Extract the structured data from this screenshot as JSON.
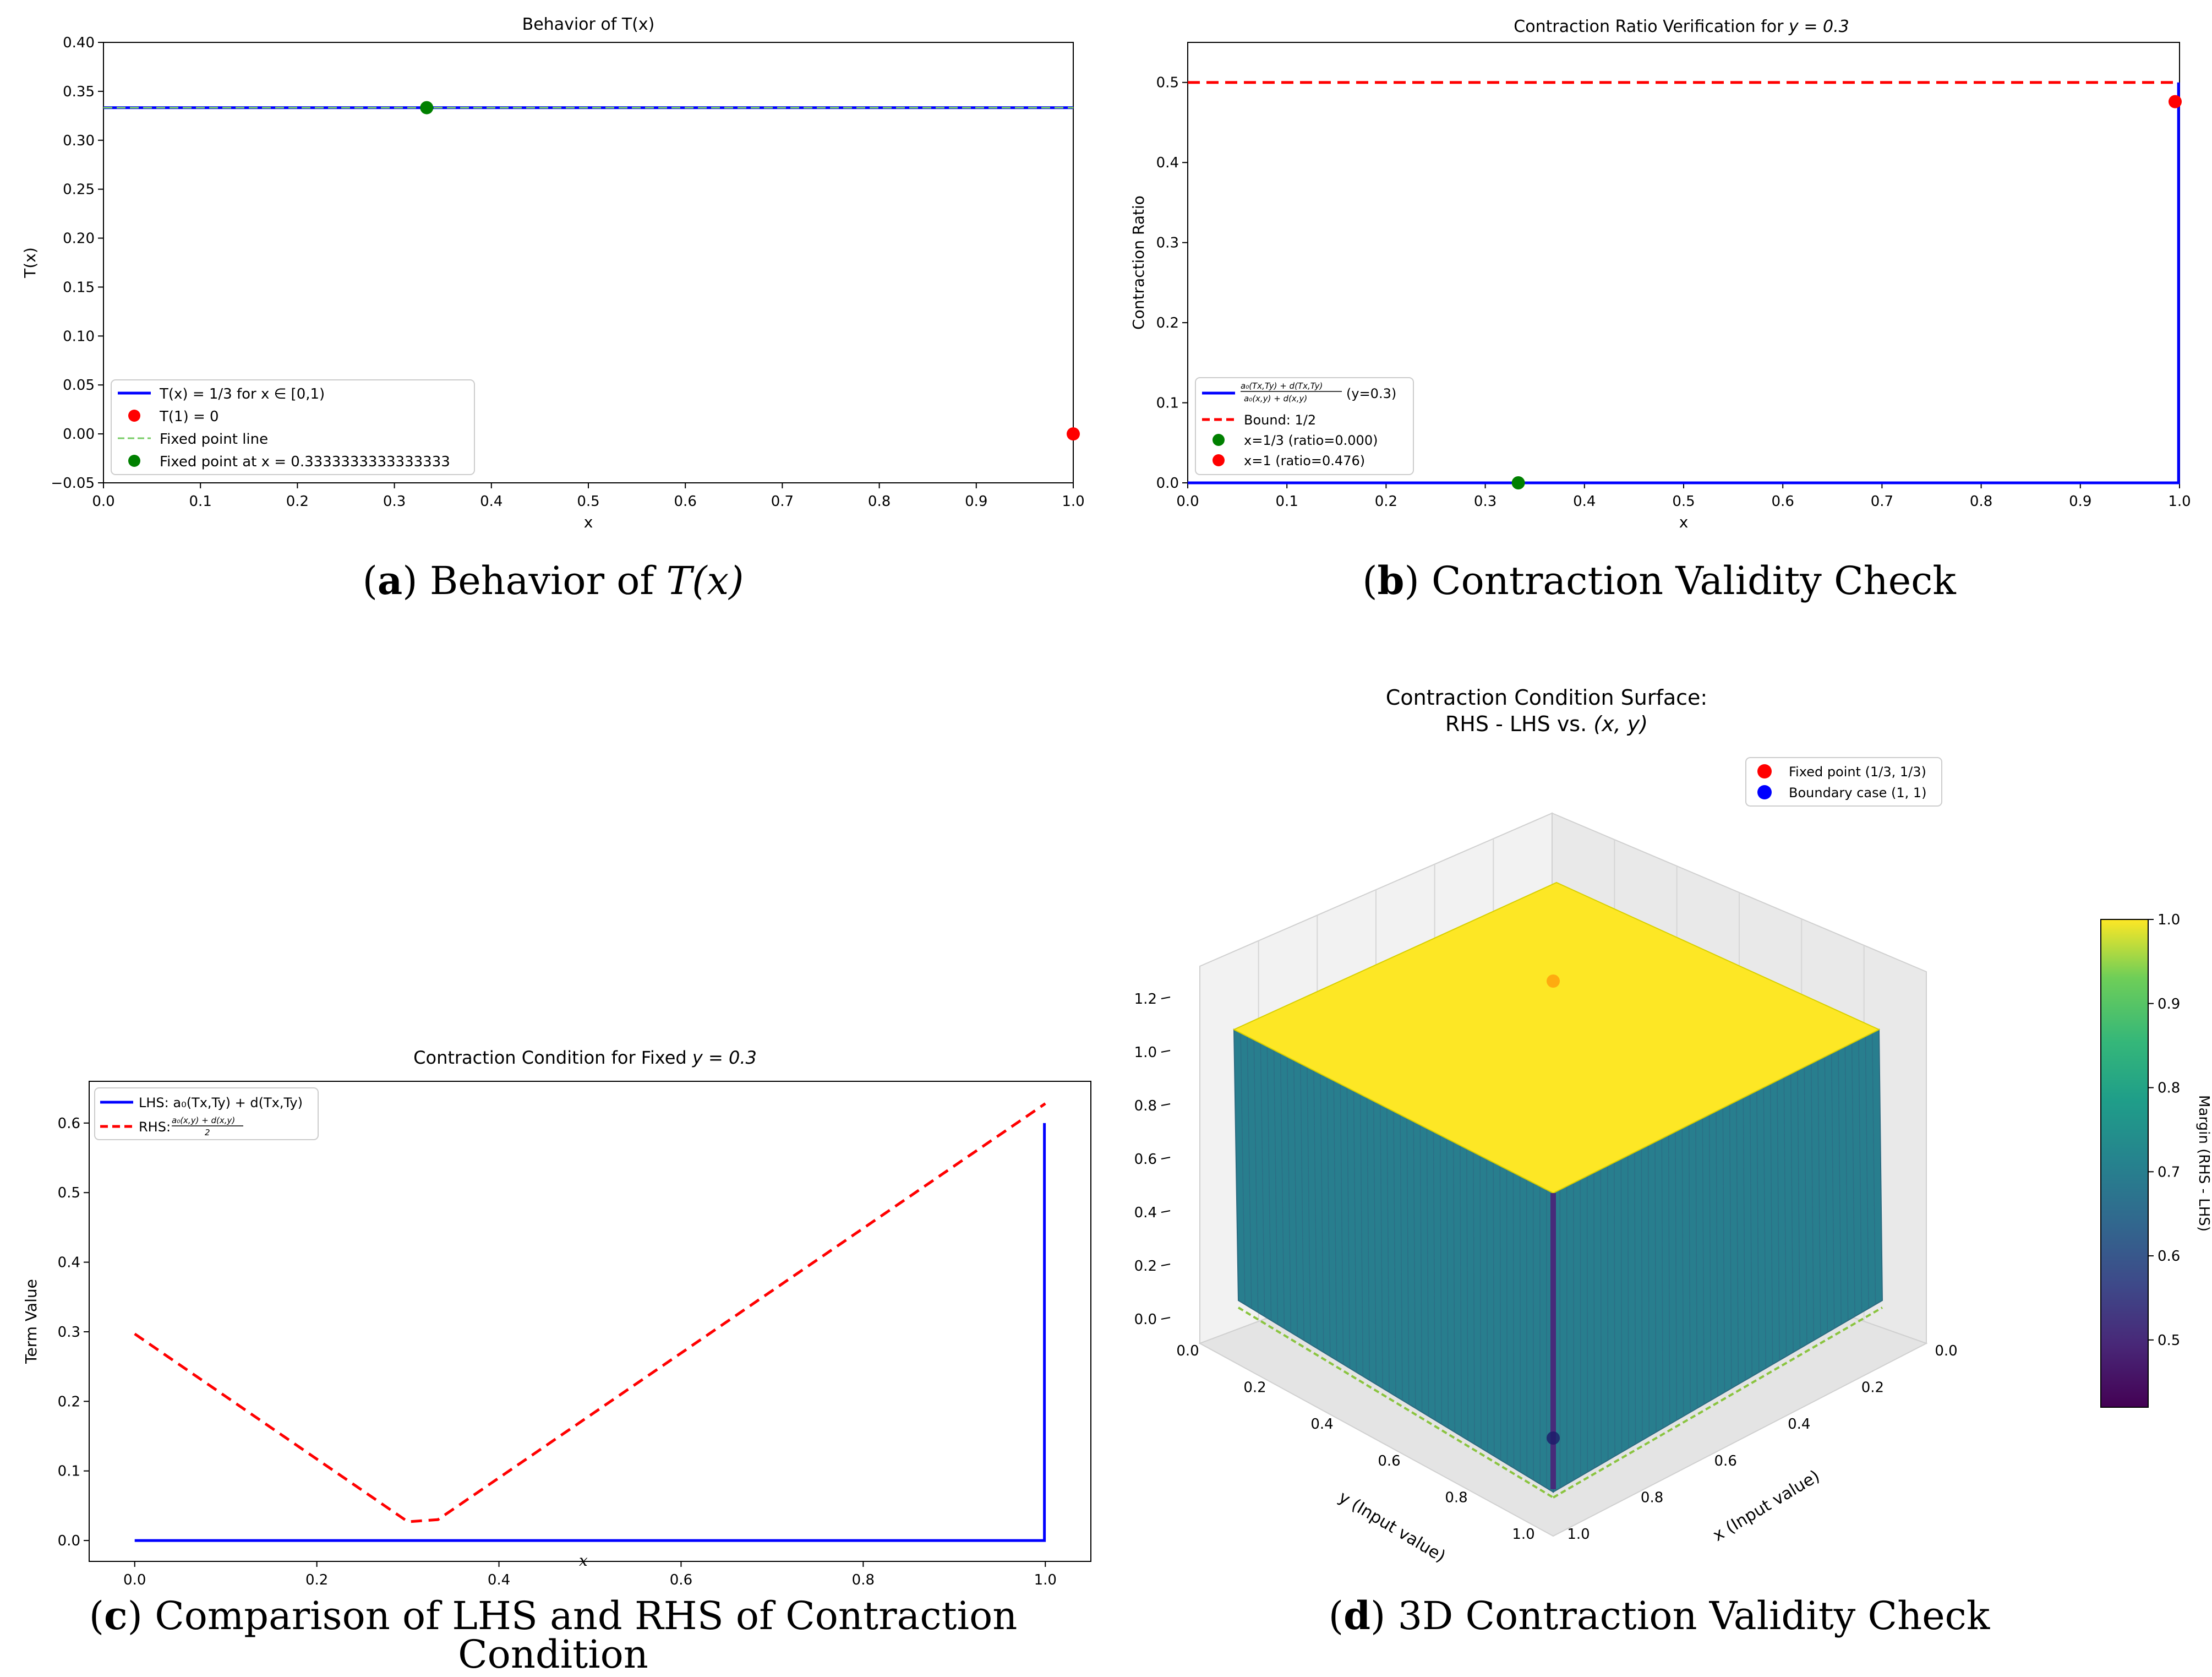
{
  "captions": [
    {
      "letter": "a",
      "text": "Behavior of",
      "math": "T(x)"
    },
    {
      "letter": "b",
      "text": "Contraction Validity Check",
      "math": ""
    },
    {
      "letter": "c",
      "text": "Comparison of LHS and RHS of Contraction Condition",
      "math": ""
    },
    {
      "letter": "d",
      "text": "3D Contraction Validity Check",
      "math": ""
    }
  ],
  "chart_data": [
    {
      "id": "a",
      "type": "line",
      "title": "Behavior of T(x)",
      "xlabel": "x",
      "ylabel": "T(x)",
      "xlim": [
        0,
        1
      ],
      "ylim": [
        -0.05,
        0.4
      ],
      "xticks": [
        "0.0",
        "0.1",
        "0.2",
        "0.3",
        "0.4",
        "0.5",
        "0.6",
        "0.7",
        "0.8",
        "0.9",
        "1.0"
      ],
      "yticks": [
        "−0.05",
        "0.00",
        "0.05",
        "0.10",
        "0.15",
        "0.20",
        "0.25",
        "0.30",
        "0.35",
        "0.40"
      ],
      "series": [
        {
          "name": "T(x) = 1/3 for x ∈ [0,1)",
          "color": "#0000ff",
          "style": "solid",
          "x": [
            0,
            1
          ],
          "y": [
            0.3333,
            0.3333
          ]
        },
        {
          "name": "T(1) = 0",
          "color": "#ff0000",
          "style": "marker",
          "x": [
            1.0
          ],
          "y": [
            0.0
          ]
        },
        {
          "name": "Fixed point line",
          "color": "#77cc66",
          "style": "dashed",
          "x": [
            0,
            1
          ],
          "y": [
            0.3333,
            0.3333
          ]
        },
        {
          "name": "Fixed point at x = 0.3333333333333333",
          "color": "#008000",
          "style": "marker",
          "x": [
            0.3333
          ],
          "y": [
            0.3333
          ]
        }
      ],
      "legend": "lower-left"
    },
    {
      "id": "b",
      "type": "line",
      "title": "Contraction Ratio Verification for",
      "title_math": "y = 0.3",
      "xlabel": "x",
      "ylabel": "Contraction Ratio",
      "xlim": [
        0,
        1
      ],
      "ylim": [
        0,
        0.55
      ],
      "xticks": [
        "0.0",
        "0.1",
        "0.2",
        "0.3",
        "0.4",
        "0.5",
        "0.6",
        "0.7",
        "0.8",
        "0.9",
        "1.0"
      ],
      "yticks": [
        "0.0",
        "0.1",
        "0.2",
        "0.3",
        "0.4",
        "0.5"
      ],
      "series": [
        {
          "name_num": "a₀(Tx,Ty) + d(Tx,Ty)",
          "name_den": "a₀(x,y) + d(x,y)",
          "name_suffix": "(y=0.3)",
          "color": "#0000ff",
          "style": "solid",
          "x": [
            0,
            0.999,
            0.999
          ],
          "y": [
            0,
            0,
            0.5
          ]
        },
        {
          "name": "Bound: 1/2",
          "color": "#ff0000",
          "style": "dashed",
          "x": [
            0,
            1
          ],
          "y": [
            0.5,
            0.5
          ]
        },
        {
          "name": "x=1/3 (ratio=0.000)",
          "color": "#008000",
          "style": "marker",
          "x": [
            0.3333
          ],
          "y": [
            0.0
          ]
        },
        {
          "name": "x=1 (ratio=0.476)",
          "color": "#ff0000",
          "style": "marker",
          "x": [
            1.0
          ],
          "y": [
            0.476
          ]
        }
      ],
      "legend": "lower-left"
    },
    {
      "id": "c",
      "type": "line",
      "title": "Contraction Condition for Fixed",
      "title_math": "y = 0.3",
      "xlabel": "x",
      "ylabel": "Term Value",
      "xlim": [
        -0.05,
        1.05
      ],
      "ylim": [
        -0.03,
        0.66
      ],
      "xticks": [
        "0.0",
        "0.2",
        "0.4",
        "0.6",
        "0.8",
        "1.0"
      ],
      "yticks": [
        "0.0",
        "0.1",
        "0.2",
        "0.3",
        "0.4",
        "0.5",
        "0.6"
      ],
      "series": [
        {
          "name": "LHS: a₀(Tx,Ty) + d(Tx,Ty)",
          "color": "#0000ff",
          "style": "solid",
          "x": [
            0,
            0.999,
            0.999
          ],
          "y": [
            0,
            0,
            0.6
          ]
        },
        {
          "name_num": "a₀(x,y) + d(x,y)",
          "name_den": "2",
          "name_prefix": "RHS:",
          "color": "#ff0000",
          "style": "dashed",
          "x": [
            0,
            0.3,
            0.333,
            1.0
          ],
          "y": [
            0.297,
            0.027,
            0.03,
            0.628
          ]
        }
      ],
      "legend": "upper-left"
    },
    {
      "id": "d",
      "type": "surface3d",
      "title_line1": "Contraction Condition Surface:",
      "title_line2": "RHS - LHS vs.",
      "title_math": "(x, y)",
      "xlabel": "x (Input value)",
      "ylabel": "y (Input value)",
      "zticks": [
        "0.0",
        "0.2",
        "0.4",
        "0.6",
        "0.8",
        "1.0",
        "1.2"
      ],
      "xticks": [
        "0.0",
        "0.2",
        "0.4",
        "0.6",
        "0.8",
        "1.0"
      ],
      "yticks": [
        "0.0",
        "0.2",
        "0.4",
        "0.6",
        "0.8",
        "1.0"
      ],
      "surface_top_value": 1.0,
      "surface_side_value": 0.7,
      "ridge_value": 0.5,
      "colorbar": {
        "label": "Margin (RHS - LHS)",
        "range": [
          0.42,
          1.0
        ],
        "ticks": [
          "0.5",
          "0.6",
          "0.7",
          "0.8",
          "0.9",
          "1.0"
        ]
      },
      "points": [
        {
          "name": "Fixed point (1/3, 1/3)",
          "color": "#ff0000",
          "x": 0.3333,
          "y": 0.3333
        },
        {
          "name": "Boundary case (1, 1)",
          "color": "#0000ff",
          "x": 1.0,
          "y": 1.0
        }
      ]
    }
  ]
}
